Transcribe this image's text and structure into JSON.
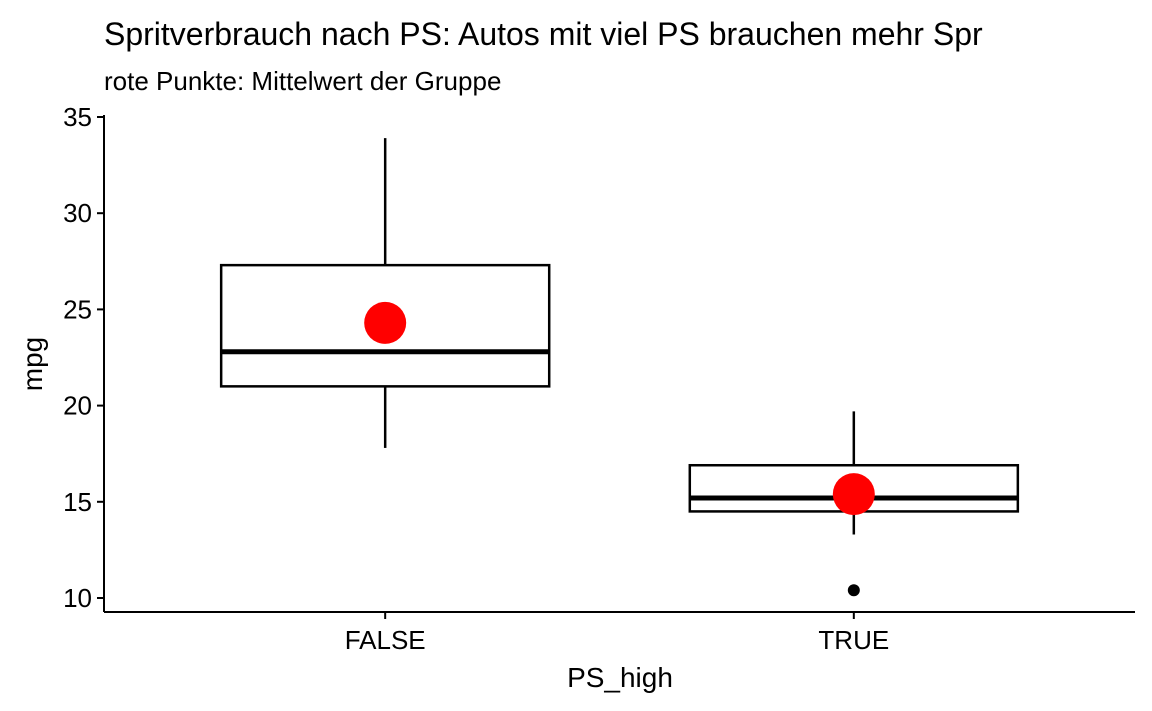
{
  "chart_data": {
    "type": "boxplot",
    "title": "Spritverbrauch nach PS: Autos mit viel PS brauchen mehr Spr",
    "subtitle": "rote Punkte: Mittelwert der Gruppe",
    "xlabel": "PS_high",
    "ylabel": "mpg",
    "ylim": [
      9.3,
      35
    ],
    "yticks": [
      10,
      15,
      20,
      25,
      30,
      35
    ],
    "categories": [
      "FALSE",
      "TRUE"
    ],
    "boxes": [
      {
        "category": "FALSE",
        "lower_whisker": 17.8,
        "q1": 21.0,
        "median": 22.8,
        "q3": 27.3,
        "upper_whisker": 33.9,
        "mean": 24.3,
        "outliers": []
      },
      {
        "category": "TRUE",
        "lower_whisker": 13.3,
        "q1": 14.5,
        "median": 15.2,
        "q3": 16.9,
        "upper_whisker": 19.7,
        "mean": 15.4,
        "outliers": [
          10.4
        ]
      }
    ],
    "mean_color": "#ff0000",
    "grid": false
  }
}
